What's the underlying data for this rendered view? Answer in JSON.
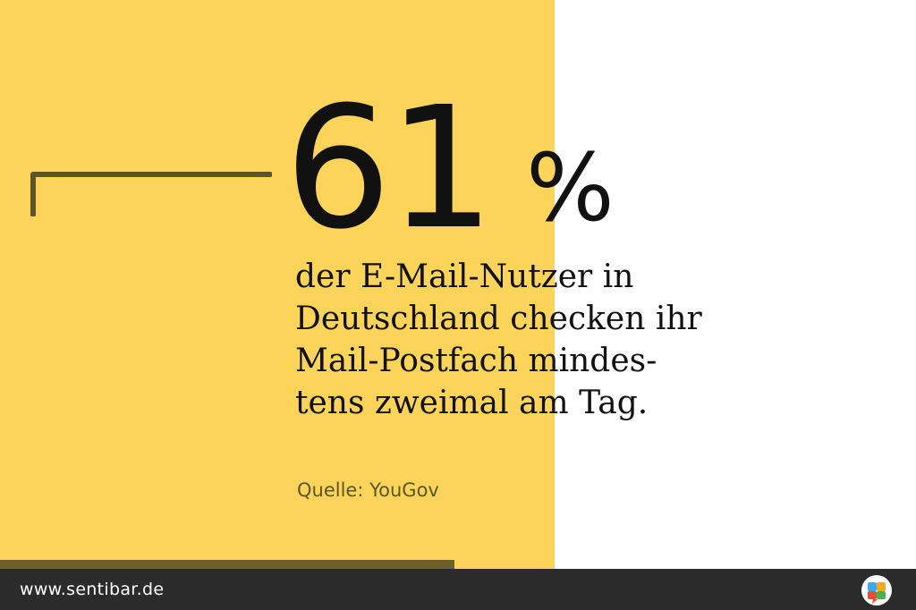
{
  "headline": {
    "number": "61",
    "percent_sign": "%",
    "statement_lines": [
      "der E-Mail-Nutzer in",
      "Deutschland checken ihr",
      "Mail-Postfach mindes-",
      "tens zweimal am Tag."
    ]
  },
  "source": "Quelle: YouGov",
  "footer": {
    "url": "www.sentibar.de",
    "logo_icon": "sentibar-logo-icon"
  },
  "colors": {
    "accent_yellow": "#fcd45a",
    "dark_olive": "#5d5428",
    "bar_dark": "#2b2b2b",
    "text": "#111111"
  }
}
